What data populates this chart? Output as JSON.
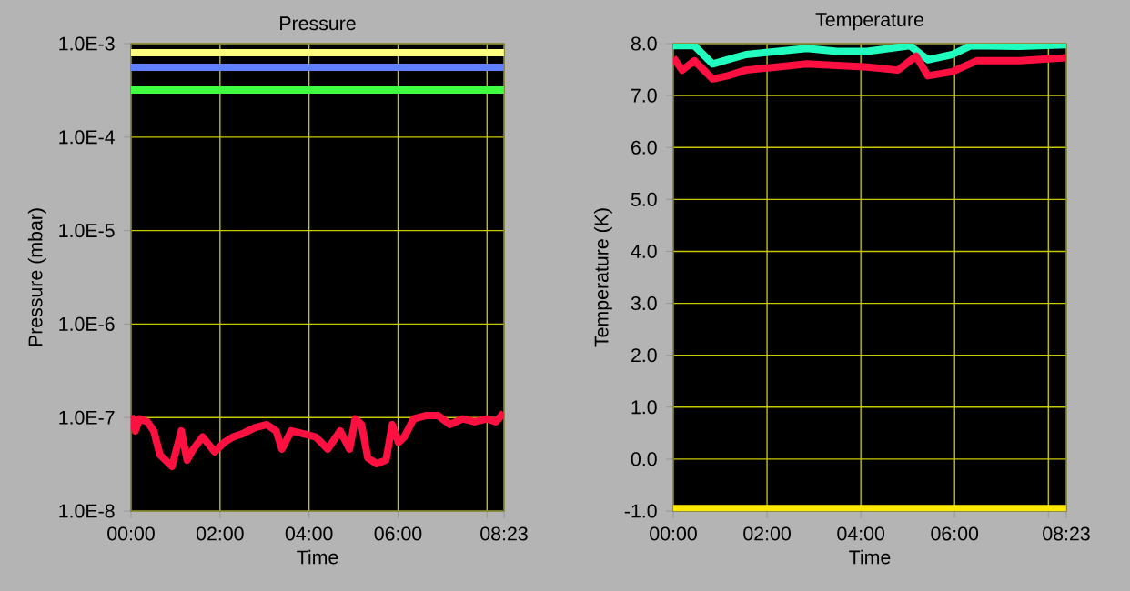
{
  "chart_data": [
    {
      "type": "line",
      "title": "Pressure",
      "xlabel": "Time",
      "ylabel": "Pressure (mbar)",
      "log": "y",
      "grid": true,
      "marker": "none",
      "xlim": [
        0,
        8.383
      ],
      "ylim": [
        1e-08,
        0.001
      ],
      "xticks": [
        {
          "value": 0,
          "label": "00:00"
        },
        {
          "value": 2,
          "label": "02:00"
        },
        {
          "value": 4,
          "label": "04:00"
        },
        {
          "value": 6,
          "label": "06:00"
        },
        {
          "value": 8,
          "label": null
        },
        {
          "value": 8.383,
          "label": "08:23"
        }
      ],
      "yticks": [
        {
          "value": 1e-08,
          "label": "1.0E-8"
        },
        {
          "value": 1e-07,
          "label": "1.0E-7"
        },
        {
          "value": 1e-06,
          "label": "1.0E-6"
        },
        {
          "value": 1e-05,
          "label": "1.0E-5"
        },
        {
          "value": 0.0001,
          "label": "1.0E-4"
        },
        {
          "value": 0.001,
          "label": "1.0E-3"
        }
      ],
      "series": [
        {
          "color": "#ffff80",
          "x": [
            0,
            4,
            8.38
          ],
          "values": [
            0.0008,
            0.0008,
            0.0008
          ]
        },
        {
          "color": "#6080ff",
          "x": [
            0,
            4,
            8.38
          ],
          "values": [
            0.00056,
            0.00056,
            0.00056
          ]
        },
        {
          "color": "#40ff40",
          "x": [
            0,
            4,
            8.38
          ],
          "values": [
            0.00032,
            0.00032,
            0.00032
          ]
        },
        {
          "color": "#ff1040",
          "x": [
            0,
            0.096,
            0.19,
            0.37,
            0.51,
            0.65,
            0.92,
            1.13,
            1.26,
            1.4,
            1.61,
            1.88,
            2.09,
            2.29,
            2.5,
            2.78,
            3.05,
            3.26,
            3.39,
            3.6,
            3.88,
            4.15,
            4.42,
            4.7,
            4.91,
            5.04,
            5.18,
            5.32,
            5.52,
            5.73,
            5.87,
            6.01,
            6.14,
            6.35,
            6.62,
            6.9,
            7.17,
            7.45,
            7.72,
            8.0,
            8.2,
            8.38
          ],
          "values": [
            1.05e-07,
            7.2e-08,
            9.7e-08,
            9e-08,
            7.2e-08,
            4e-08,
            3e-08,
            7.2e-08,
            3.5e-08,
            4.6e-08,
            6.2e-08,
            4.3e-08,
            5.4e-08,
            6.2e-08,
            6.7e-08,
            7.8e-08,
            8.4e-08,
            7.2e-08,
            4.6e-08,
            7.2e-08,
            6.7e-08,
            6.2e-08,
            4.6e-08,
            7.2e-08,
            4.6e-08,
            9.7e-08,
            8.4e-08,
            3.7e-08,
            3.2e-08,
            3.5e-08,
            8.4e-08,
            5.4e-08,
            6.2e-08,
            9.7e-08,
            1.05e-07,
            1.05e-07,
            8.4e-08,
            9.7e-08,
            9e-08,
            9.7e-08,
            9e-08,
            1.13e-07
          ]
        }
      ]
    },
    {
      "type": "line",
      "title": "Temperature",
      "xlabel": "Time",
      "ylabel": "Temperature (K)",
      "grid": true,
      "marker": "none",
      "xlim": [
        0,
        8.383
      ],
      "ylim": [
        -1,
        8
      ],
      "xticks": [
        {
          "value": 0,
          "label": "00:00"
        },
        {
          "value": 2,
          "label": "02:00"
        },
        {
          "value": 4,
          "label": "04:00"
        },
        {
          "value": 6,
          "label": "06:00"
        },
        {
          "value": 8,
          "label": null
        },
        {
          "value": 8.383,
          "label": "08:23"
        }
      ],
      "yticks": [
        {
          "value": -1,
          "label": "-1.0"
        },
        {
          "value": 0,
          "label": "0.0"
        },
        {
          "value": 1,
          "label": "1.0"
        },
        {
          "value": 2,
          "label": "2.0"
        },
        {
          "value": 3,
          "label": "3.0"
        },
        {
          "value": 4,
          "label": "4.0"
        },
        {
          "value": 5,
          "label": "5.0"
        },
        {
          "value": 6,
          "label": "6.0"
        },
        {
          "value": 7,
          "label": "7.0"
        },
        {
          "value": 8,
          "label": "8.0"
        }
      ],
      "series": [
        {
          "color": "#20ffc0",
          "x": [
            0,
            0.45,
            0.84,
            1.16,
            1.55,
            2.2,
            2.85,
            3.49,
            4.14,
            5.05,
            5.43,
            5.95,
            6.34,
            7.38,
            8.38
          ],
          "values": [
            7.96,
            7.96,
            7.61,
            7.69,
            7.79,
            7.85,
            7.91,
            7.85,
            7.85,
            7.96,
            7.69,
            7.79,
            7.96,
            7.95,
            7.98
          ]
        },
        {
          "color": "#ff1040",
          "x": [
            0,
            0.19,
            0.45,
            0.84,
            1.16,
            1.55,
            2.2,
            2.85,
            3.49,
            4.14,
            4.79,
            5.18,
            5.43,
            5.95,
            6.47,
            7.38,
            8.38
          ],
          "values": [
            7.73,
            7.49,
            7.67,
            7.32,
            7.38,
            7.49,
            7.55,
            7.61,
            7.58,
            7.55,
            7.49,
            7.76,
            7.38,
            7.46,
            7.67,
            7.67,
            7.73
          ]
        },
        {
          "color": "#ffe800",
          "x": [
            0,
            4,
            8.38
          ],
          "values": [
            -0.95,
            -0.95,
            -0.95
          ]
        }
      ]
    }
  ]
}
